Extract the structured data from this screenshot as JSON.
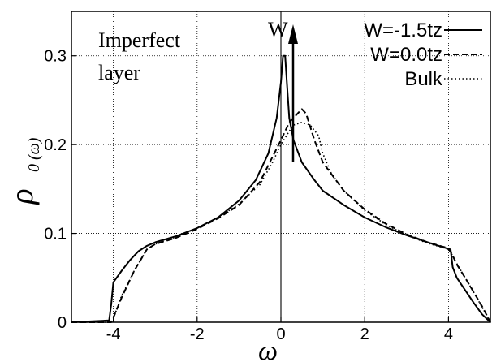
{
  "chart_data": {
    "type": "line",
    "xlabel": "ω",
    "ylabel_main": "ρ",
    "ylabel_sub": "0 (ω)",
    "xlim": [
      -5,
      5
    ],
    "ylim": [
      0,
      0.35
    ],
    "xticks": [
      -4,
      -2,
      0,
      2,
      4
    ],
    "xtick_labels": [
      "-4",
      "-2",
      "0",
      "2",
      "4"
    ],
    "yticks": [
      0,
      0.1,
      0.2,
      0.3
    ],
    "ytick_labels": [
      "0",
      "0.1",
      "0.2",
      "0.3"
    ],
    "grid": true,
    "legend_position": "top-right",
    "annotations": {
      "imperfect_line1": "Imperfect",
      "imperfect_line2": "layer",
      "arrow_label": "W"
    },
    "series": [
      {
        "name": "W=-1.5tz",
        "style": "solid",
        "x": [
          -5,
          -4.1,
          -4.05,
          -4.0,
          -3.8,
          -3.6,
          -3.4,
          -3.2,
          -3.0,
          -2.5,
          -2.0,
          -1.5,
          -1.0,
          -0.6,
          -0.3,
          -0.1,
          0.0,
          0.05,
          0.1,
          0.15,
          0.2,
          0.3,
          0.5,
          0.8,
          1.0,
          1.5,
          2.0,
          2.5,
          3.0,
          3.5,
          3.9,
          4.05,
          4.1,
          4.2,
          4.4,
          4.6,
          4.8,
          5.0
        ],
        "y": [
          0,
          0.002,
          0.02,
          0.045,
          0.058,
          0.07,
          0.08,
          0.086,
          0.09,
          0.097,
          0.106,
          0.118,
          0.137,
          0.16,
          0.19,
          0.23,
          0.27,
          0.3,
          0.3,
          0.265,
          0.23,
          0.205,
          0.18,
          0.16,
          0.148,
          0.132,
          0.118,
          0.107,
          0.098,
          0.09,
          0.084,
          0.082,
          0.062,
          0.05,
          0.036,
          0.022,
          0.009,
          0
        ]
      },
      {
        "name": "W=0.0tz",
        "style": "dashed",
        "x": [
          -5,
          -4.05,
          -4.0,
          -3.8,
          -3.5,
          -3.2,
          -3.0,
          -2.5,
          -2.0,
          -1.5,
          -1.0,
          -0.5,
          0.0,
          0.2,
          0.4,
          0.5,
          0.6,
          0.8,
          1.0,
          1.5,
          2.0,
          2.5,
          3.0,
          3.5,
          3.95,
          4.05,
          4.2,
          4.4,
          4.6,
          4.8,
          5.0
        ],
        "y": [
          0,
          0,
          0.005,
          0.028,
          0.058,
          0.082,
          0.088,
          0.095,
          0.105,
          0.117,
          0.132,
          0.158,
          0.205,
          0.225,
          0.235,
          0.24,
          0.235,
          0.205,
          0.18,
          0.148,
          0.127,
          0.111,
          0.099,
          0.09,
          0.084,
          0.08,
          0.065,
          0.05,
          0.034,
          0.018,
          0
        ]
      },
      {
        "name": "Bulk",
        "style": "dotted",
        "x": [
          -5,
          -4.05,
          -4.0,
          -3.8,
          -3.5,
          -3.2,
          -3.0,
          -2.5,
          -2.0,
          -1.5,
          -1.0,
          -0.5,
          -0.2,
          0.0,
          0.2,
          0.3,
          0.5,
          0.7,
          0.9,
          1.0,
          1.2,
          1.5,
          2.0,
          2.5,
          3.0,
          3.5,
          3.95,
          4.05,
          4.2,
          4.4,
          4.6,
          4.8,
          5.0
        ],
        "y": [
          0,
          0,
          0.004,
          0.03,
          0.058,
          0.082,
          0.088,
          0.096,
          0.106,
          0.118,
          0.133,
          0.155,
          0.18,
          0.2,
          0.215,
          0.222,
          0.225,
          0.222,
          0.21,
          0.19,
          0.168,
          0.148,
          0.126,
          0.11,
          0.098,
          0.089,
          0.083,
          0.079,
          0.066,
          0.05,
          0.034,
          0.017,
          0
        ]
      }
    ]
  }
}
